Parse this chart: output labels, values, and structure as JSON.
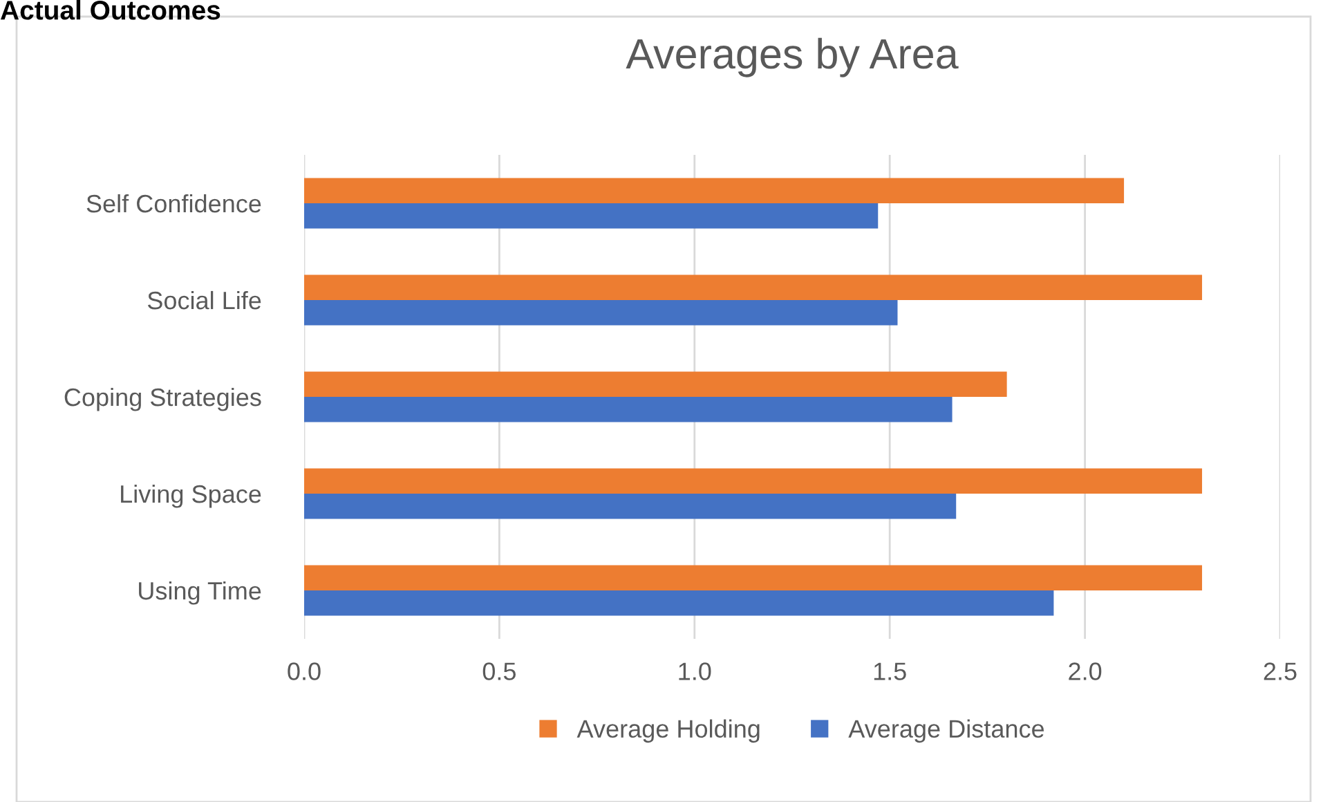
{
  "chart_data": {
    "type": "bar",
    "orientation": "horizontal",
    "title": "Averages by Area",
    "annotations": [
      "Actual Outcomes"
    ],
    "categories": [
      "Self Confidence",
      "Social Life",
      "Coping Strategies",
      "Living Space",
      "Using Time"
    ],
    "series": [
      {
        "name": "Average Holding",
        "color": "#ed7d31",
        "values": [
          2.1,
          2.3,
          1.8,
          2.3,
          2.3
        ]
      },
      {
        "name": "Average Distance",
        "color": "#4472c4",
        "values": [
          1.47,
          1.52,
          1.66,
          1.67,
          1.92
        ]
      }
    ],
    "xlim": [
      0,
      2.5
    ],
    "xticks": [
      {
        "value": 0,
        "label": "0.0"
      },
      {
        "value": 0.5,
        "label": "0.5"
      },
      {
        "value": 1,
        "label": "1.0"
      },
      {
        "value": 1.5,
        "label": "1.5"
      },
      {
        "value": 2,
        "label": "2.0"
      },
      {
        "value": 2.5,
        "label": "2.5"
      }
    ],
    "grid": "x",
    "legend": "bottom"
  }
}
